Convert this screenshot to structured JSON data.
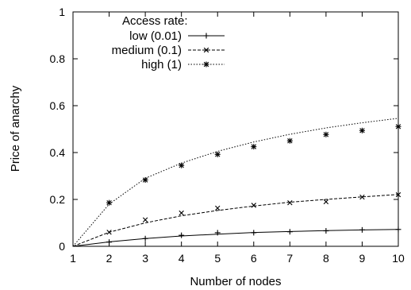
{
  "chart_data": {
    "type": "line",
    "title": "",
    "xlabel": "Number of nodes",
    "ylabel": "Price of anarchy",
    "xlim": [
      1,
      10
    ],
    "ylim": [
      0,
      1
    ],
    "xticks": [
      "1",
      "2",
      "3",
      "4",
      "5",
      "6",
      "7",
      "8",
      "9",
      "10"
    ],
    "yticks": [
      "0",
      "0.2",
      "0.4",
      "0.6",
      "0.8",
      "1"
    ],
    "grid": false,
    "legend": {
      "title": "Access rate:",
      "placement": "top-left"
    },
    "series": [
      {
        "name": "low (0.01)",
        "marker": "plus",
        "line_style": "solid",
        "points": {
          "x": [
            2,
            3,
            4,
            5,
            6,
            7,
            8,
            9,
            10
          ],
          "y": [
            0.018,
            0.033,
            0.047,
            0.058,
            0.058,
            0.062,
            0.066,
            0.07,
            0.072
          ]
        },
        "fit": {
          "x": [
            1,
            2,
            3,
            4,
            5,
            6,
            7,
            8,
            9,
            10
          ],
          "y": [
            0,
            0.019,
            0.033,
            0.044,
            0.052,
            0.059,
            0.063,
            0.067,
            0.07,
            0.072
          ]
        }
      },
      {
        "name": "medium (0.1)",
        "marker": "cross",
        "line_style": "dashed",
        "points": {
          "x": [
            2,
            3,
            4,
            5,
            6,
            7,
            8,
            9,
            10
          ],
          "y": [
            0.06,
            0.113,
            0.142,
            0.163,
            0.175,
            0.186,
            0.19,
            0.21,
            0.22
          ]
        },
        "fit": {
          "x": [
            1,
            2,
            3,
            4,
            5,
            6,
            7,
            8,
            9,
            10
          ],
          "y": [
            0,
            0.06,
            0.1,
            0.13,
            0.153,
            0.172,
            0.188,
            0.2,
            0.211,
            0.221
          ]
        }
      },
      {
        "name": "high (1)",
        "marker": "star",
        "line_style": "dotted",
        "points": {
          "x": [
            2,
            3,
            4,
            5,
            6,
            7,
            8,
            9,
            10
          ],
          "y": [
            0.186,
            0.283,
            0.345,
            0.392,
            0.425,
            0.45,
            0.477,
            0.494,
            0.511
          ]
        },
        "fit": {
          "x": [
            1,
            2,
            3,
            4,
            5,
            6,
            7,
            8,
            9,
            10
          ],
          "y": [
            0,
            0.18,
            0.29,
            0.355,
            0.405,
            0.445,
            0.478,
            0.505,
            0.527,
            0.546
          ]
        }
      }
    ]
  }
}
